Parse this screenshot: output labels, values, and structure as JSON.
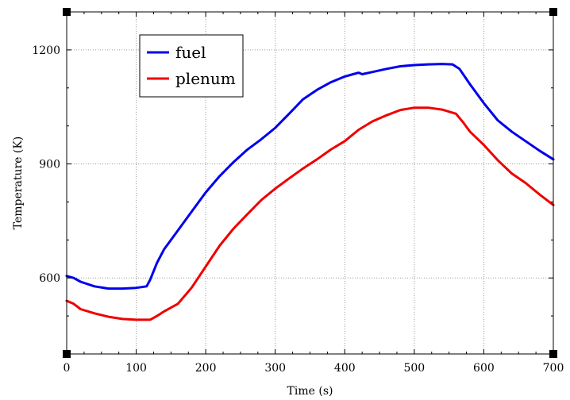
{
  "chart_data": {
    "type": "line",
    "xlabel": "Time (s)",
    "ylabel": "Temperature (K)",
    "xlim": [
      0,
      700
    ],
    "ylim": [
      400,
      1300
    ],
    "xticks": [
      0,
      100,
      200,
      300,
      400,
      500,
      600,
      700
    ],
    "yticks": [
      600,
      900,
      1200
    ],
    "grid": true,
    "legend": "top-left",
    "series": [
      {
        "name": "fuel",
        "color": "#0000ee",
        "x": [
          0,
          10,
          20,
          40,
          60,
          80,
          100,
          115,
          120,
          130,
          140,
          160,
          180,
          200,
          220,
          240,
          260,
          280,
          300,
          320,
          340,
          360,
          380,
          400,
          410,
          420,
          425,
          440,
          460,
          480,
          500,
          520,
          540,
          555,
          565,
          580,
          600,
          620,
          640,
          660,
          680,
          700
        ],
        "y": [
          605,
          600,
          590,
          578,
          572,
          572,
          574,
          578,
          595,
          640,
          675,
          725,
          775,
          825,
          868,
          905,
          938,
          965,
          995,
          1032,
          1070,
          1095,
          1115,
          1130,
          1135,
          1140,
          1136,
          1142,
          1150,
          1157,
          1160,
          1162,
          1163,
          1162,
          1150,
          1110,
          1060,
          1015,
          985,
          960,
          935,
          912
        ]
      },
      {
        "name": "plenum",
        "color": "#ee0000",
        "x": [
          0,
          10,
          20,
          40,
          60,
          80,
          100,
          120,
          130,
          140,
          160,
          180,
          200,
          220,
          240,
          260,
          280,
          300,
          320,
          340,
          360,
          380,
          400,
          420,
          440,
          460,
          480,
          500,
          520,
          540,
          560,
          570,
          580,
          600,
          620,
          640,
          660,
          680,
          700
        ],
        "y": [
          540,
          532,
          518,
          507,
          498,
          492,
          490,
          490,
          500,
          512,
          532,
          575,
          630,
          685,
          730,
          768,
          805,
          835,
          862,
          888,
          912,
          938,
          960,
          990,
          1012,
          1028,
          1042,
          1048,
          1048,
          1043,
          1032,
          1010,
          985,
          950,
          910,
          875,
          850,
          820,
          792
        ]
      }
    ]
  }
}
